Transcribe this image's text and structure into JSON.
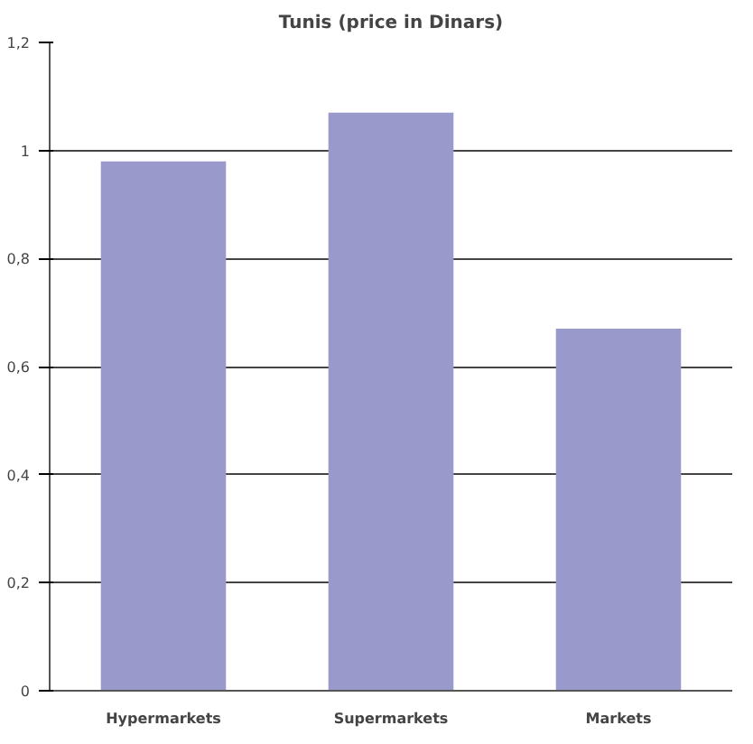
{
  "chart_data": {
    "type": "bar",
    "title": "Tunis (price in Dinars)",
    "categories": [
      "Hypermarkets",
      "Supermarkets",
      "Markets"
    ],
    "values": [
      0.98,
      1.07,
      0.67
    ],
    "color": "#9999cc",
    "ylim": [
      0,
      1.2
    ],
    "yticks": [
      0,
      {
        "value": 0.2,
        "label": "0,2"
      },
      {
        "value": 0.4,
        "label": "0,4"
      },
      {
        "value": 0.6,
        "label": "0,6"
      },
      {
        "value": 0.8,
        "label": "0,8"
      },
      1,
      {
        "value": 1.2,
        "label": "1,2"
      }
    ],
    "grid": "y"
  }
}
